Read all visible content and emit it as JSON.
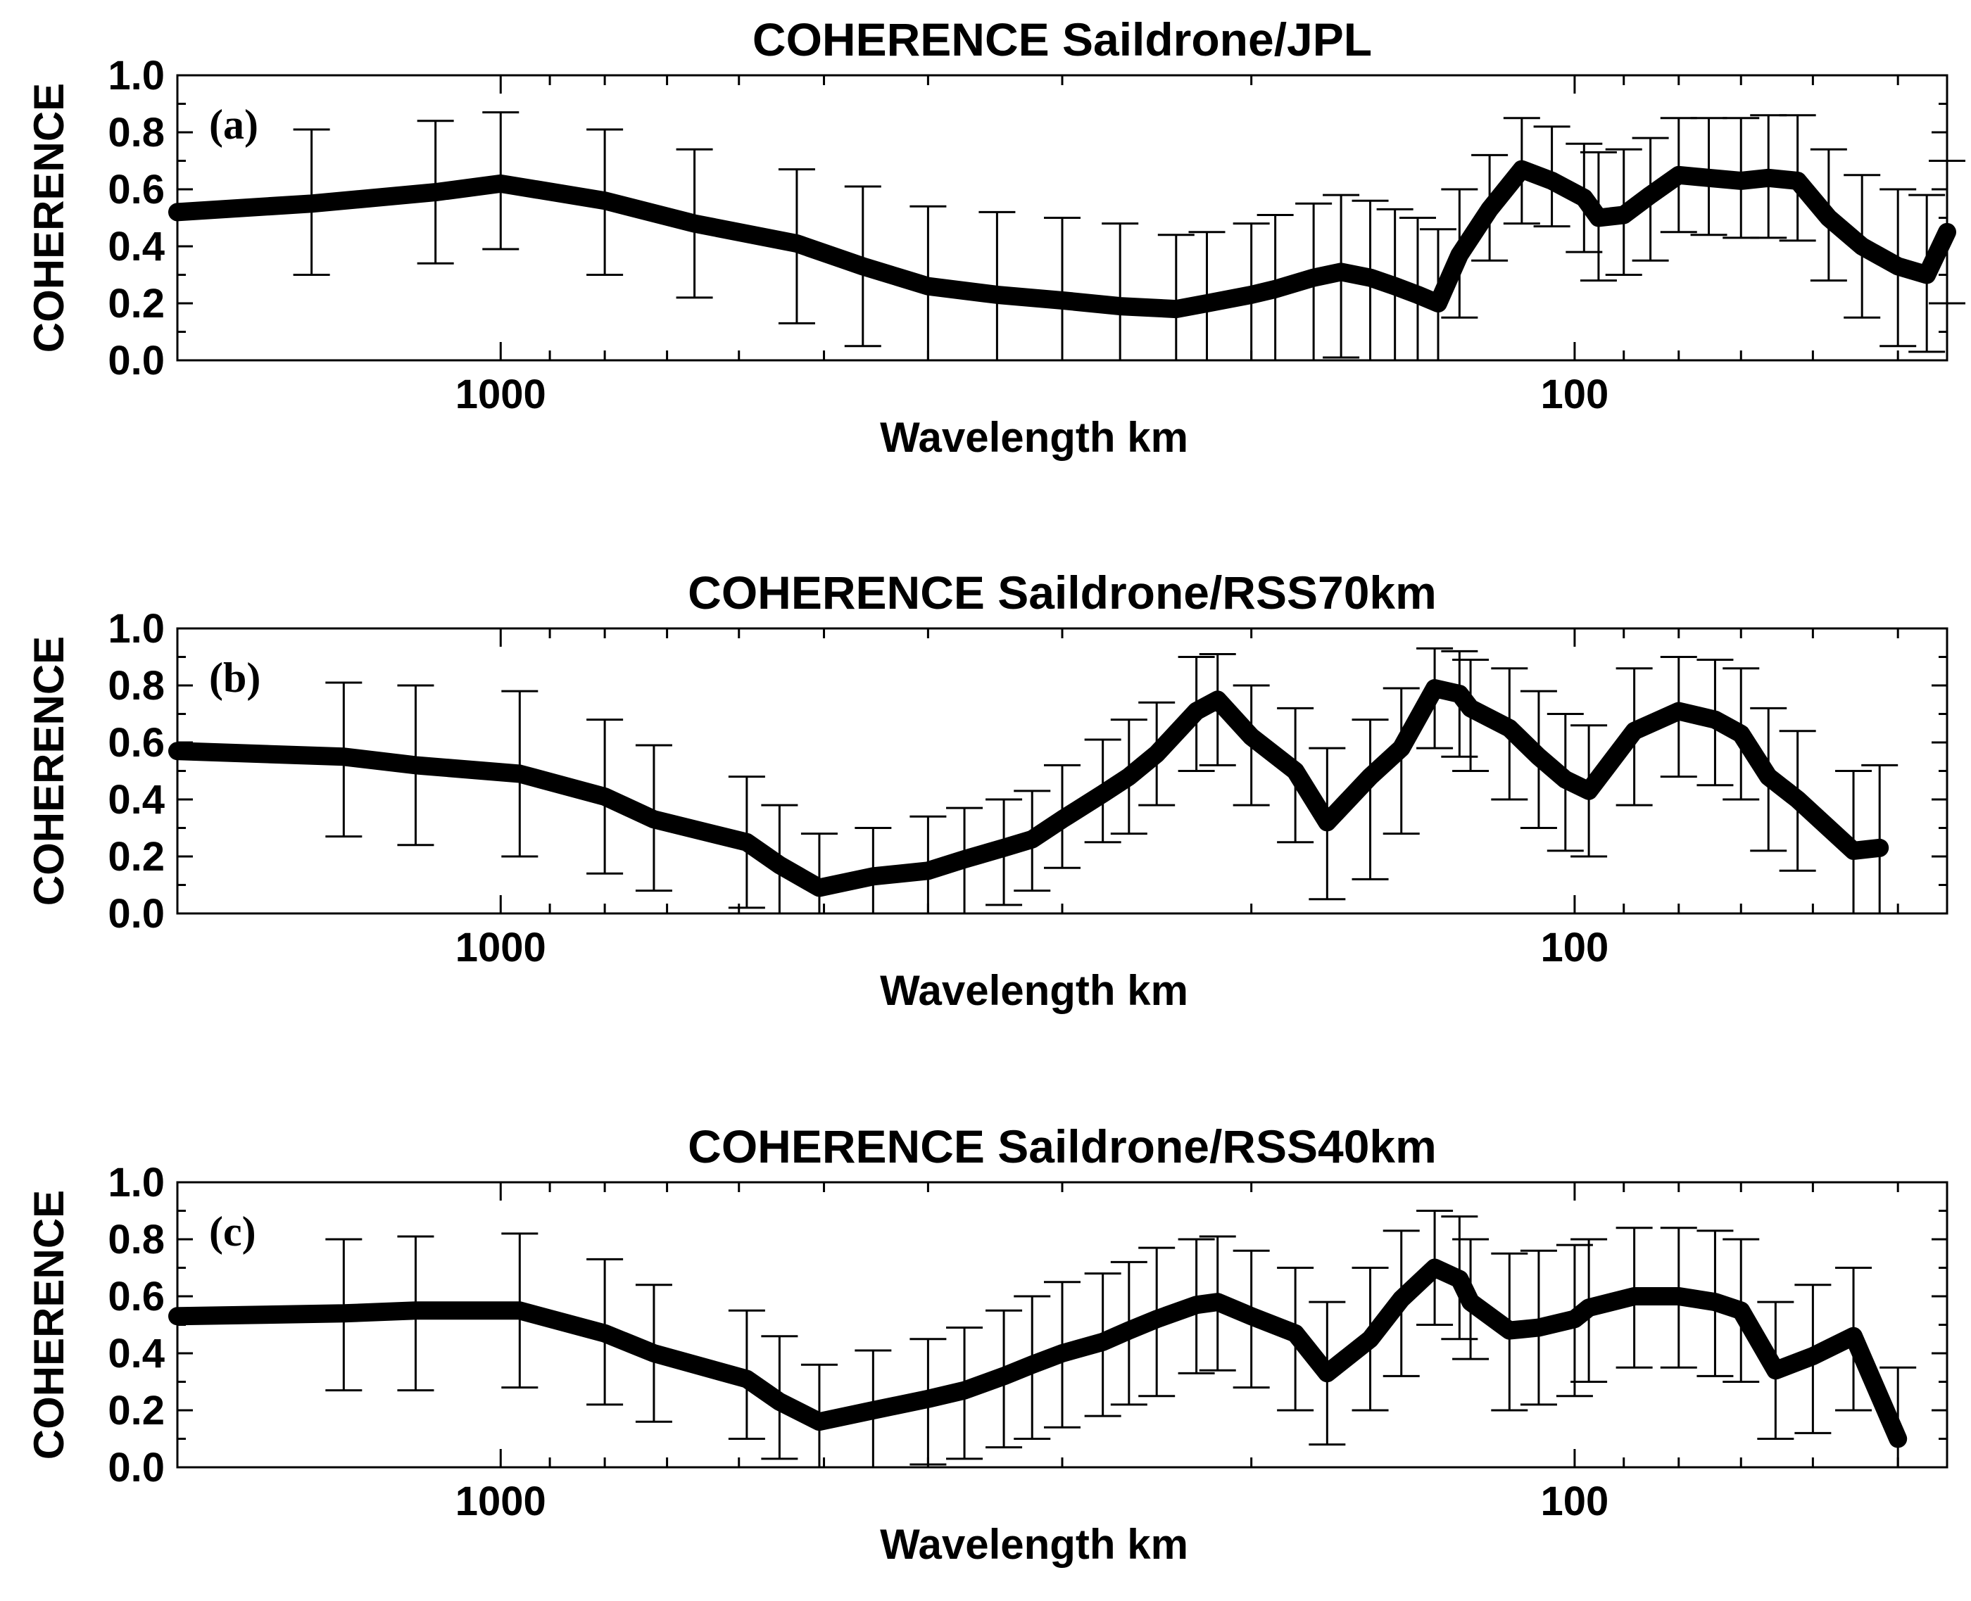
{
  "chart_data": [
    {
      "type": "line",
      "panel_tag": "(a)",
      "title": "COHERENCE Saildrone/JPL",
      "xlabel": "Wavelength km",
      "ylabel": "COHERENCE",
      "xscale": "log-reversed",
      "xlim": [
        2000,
        45
      ],
      "ylim": [
        0.0,
        1.0
      ],
      "yticks": [
        "0.0",
        "0.2",
        "0.4",
        "0.6",
        "0.8",
        "1.0"
      ],
      "xticks": [
        {
          "value": 1000,
          "label": "1000"
        },
        {
          "value": 100,
          "label": "100"
        }
      ],
      "x": [
        2000,
        1500,
        1150,
        1000,
        800,
        660,
        530,
        460,
        400,
        345,
        300,
        265,
        235,
        220,
        200,
        190,
        175,
        165,
        155,
        147,
        140,
        134,
        128,
        120,
        112,
        105,
        98,
        95,
        90,
        85,
        80,
        75,
        70,
        66,
        62,
        58,
        54,
        50,
        47,
        45
      ],
      "values": [
        0.52,
        0.55,
        0.59,
        0.62,
        0.56,
        0.48,
        0.41,
        0.33,
        0.26,
        0.23,
        0.21,
        0.19,
        0.18,
        0.2,
        0.23,
        0.25,
        0.29,
        0.31,
        0.29,
        0.26,
        0.23,
        0.2,
        0.37,
        0.53,
        0.67,
        0.63,
        0.57,
        0.5,
        0.51,
        0.58,
        0.65,
        0.64,
        0.63,
        0.64,
        0.63,
        0.5,
        0.4,
        0.33,
        0.3,
        0.45
      ],
      "err_low": [
        0.52,
        0.3,
        0.34,
        0.39,
        0.3,
        0.22,
        0.13,
        0.05,
        0.0,
        0.0,
        0.0,
        0.0,
        0.0,
        0.0,
        0.0,
        0.0,
        0.0,
        0.01,
        0.0,
        0.0,
        0.0,
        0.0,
        0.15,
        0.35,
        0.48,
        0.47,
        0.38,
        0.28,
        0.3,
        0.35,
        0.45,
        0.44,
        0.43,
        0.43,
        0.42,
        0.28,
        0.15,
        0.05,
        0.03,
        0.2
      ],
      "err_high": [
        0.52,
        0.81,
        0.84,
        0.87,
        0.81,
        0.74,
        0.67,
        0.61,
        0.54,
        0.52,
        0.5,
        0.48,
        0.44,
        0.45,
        0.48,
        0.51,
        0.55,
        0.58,
        0.56,
        0.53,
        0.5,
        0.46,
        0.6,
        0.72,
        0.85,
        0.82,
        0.76,
        0.73,
        0.74,
        0.78,
        0.85,
        0.85,
        0.85,
        0.86,
        0.86,
        0.74,
        0.65,
        0.6,
        0.58,
        0.7
      ]
    },
    {
      "type": "line",
      "panel_tag": "(b)",
      "title": "COHERENCE Saildrone/RSS70km",
      "xlabel": "Wavelength km",
      "ylabel": "COHERENCE",
      "xscale": "log-reversed",
      "xlim": [
        2000,
        45
      ],
      "ylim": [
        0.0,
        1.0
      ],
      "yticks": [
        "0.0",
        "0.2",
        "0.4",
        "0.6",
        "0.8",
        "1.0"
      ],
      "xticks": [
        {
          "value": 1000,
          "label": "1000"
        },
        {
          "value": 100,
          "label": "100"
        }
      ],
      "x": [
        2000,
        1400,
        1200,
        960,
        800,
        720,
        590,
        550,
        505,
        450,
        400,
        370,
        340,
        320,
        300,
        275,
        260,
        245,
        225,
        215,
        200,
        182,
        170,
        155,
        145,
        135,
        128,
        125,
        115,
        108,
        102,
        97,
        88,
        80,
        74,
        70,
        66,
        62,
        55,
        52
      ],
      "values": [
        0.57,
        0.55,
        0.52,
        0.49,
        0.41,
        0.33,
        0.25,
        0.17,
        0.09,
        0.13,
        0.15,
        0.19,
        0.23,
        0.26,
        0.33,
        0.42,
        0.48,
        0.56,
        0.71,
        0.75,
        0.62,
        0.5,
        0.32,
        0.48,
        0.58,
        0.79,
        0.77,
        0.72,
        0.65,
        0.55,
        0.47,
        0.43,
        0.64,
        0.71,
        0.68,
        0.63,
        0.48,
        0.4,
        0.22,
        0.23
      ],
      "err_low": [
        0.57,
        0.27,
        0.24,
        0.2,
        0.14,
        0.08,
        0.02,
        0.0,
        0.0,
        0.0,
        0.0,
        0.0,
        0.03,
        0.08,
        0.16,
        0.25,
        0.28,
        0.38,
        0.5,
        0.52,
        0.38,
        0.25,
        0.05,
        0.12,
        0.28,
        0.58,
        0.55,
        0.5,
        0.4,
        0.3,
        0.22,
        0.2,
        0.38,
        0.48,
        0.45,
        0.4,
        0.22,
        0.15,
        0.0,
        0.0
      ],
      "err_high": [
        0.57,
        0.81,
        0.8,
        0.78,
        0.68,
        0.59,
        0.48,
        0.38,
        0.28,
        0.3,
        0.34,
        0.37,
        0.4,
        0.43,
        0.52,
        0.61,
        0.68,
        0.74,
        0.9,
        0.91,
        0.8,
        0.72,
        0.58,
        0.68,
        0.79,
        0.93,
        0.92,
        0.89,
        0.86,
        0.78,
        0.7,
        0.66,
        0.86,
        0.9,
        0.89,
        0.86,
        0.72,
        0.64,
        0.5,
        0.52
      ]
    },
    {
      "type": "line",
      "panel_tag": "(c)",
      "title": "COHERENCE Saildrone/RSS40km",
      "xlabel": "Wavelength km",
      "ylabel": "COHERENCE",
      "xscale": "log-reversed",
      "xlim": [
        2000,
        45
      ],
      "ylim": [
        0.0,
        1.0
      ],
      "yticks": [
        "0.0",
        "0.2",
        "0.4",
        "0.6",
        "0.8",
        "1.0"
      ],
      "xticks": [
        {
          "value": 1000,
          "label": "1000"
        },
        {
          "value": 100,
          "label": "100"
        }
      ],
      "x": [
        2000,
        1400,
        1200,
        960,
        800,
        720,
        590,
        550,
        505,
        450,
        400,
        370,
        340,
        320,
        300,
        275,
        260,
        245,
        225,
        215,
        200,
        182,
        170,
        155,
        145,
        135,
        128,
        125,
        115,
        108,
        100,
        97,
        88,
        80,
        74,
        70,
        65,
        60,
        55,
        50
      ],
      "values": [
        0.53,
        0.54,
        0.55,
        0.55,
        0.47,
        0.4,
        0.31,
        0.23,
        0.16,
        0.2,
        0.24,
        0.27,
        0.32,
        0.36,
        0.4,
        0.44,
        0.48,
        0.52,
        0.57,
        0.58,
        0.53,
        0.47,
        0.33,
        0.45,
        0.59,
        0.7,
        0.66,
        0.58,
        0.48,
        0.49,
        0.52,
        0.56,
        0.6,
        0.6,
        0.58,
        0.55,
        0.34,
        0.39,
        0.46,
        0.1
      ],
      "err_low": [
        0.53,
        0.27,
        0.27,
        0.28,
        0.22,
        0.16,
        0.1,
        0.03,
        0.0,
        0.0,
        0.01,
        0.03,
        0.07,
        0.1,
        0.14,
        0.18,
        0.22,
        0.25,
        0.33,
        0.34,
        0.28,
        0.2,
        0.08,
        0.2,
        0.32,
        0.5,
        0.45,
        0.38,
        0.2,
        0.22,
        0.25,
        0.3,
        0.35,
        0.35,
        0.32,
        0.3,
        0.1,
        0.12,
        0.2,
        0.0
      ],
      "err_high": [
        0.53,
        0.8,
        0.81,
        0.82,
        0.73,
        0.64,
        0.55,
        0.46,
        0.36,
        0.41,
        0.45,
        0.49,
        0.55,
        0.6,
        0.65,
        0.68,
        0.72,
        0.77,
        0.8,
        0.81,
        0.76,
        0.7,
        0.58,
        0.7,
        0.83,
        0.9,
        0.88,
        0.8,
        0.75,
        0.76,
        0.78,
        0.8,
        0.84,
        0.84,
        0.83,
        0.8,
        0.58,
        0.64,
        0.7,
        0.35
      ]
    }
  ]
}
